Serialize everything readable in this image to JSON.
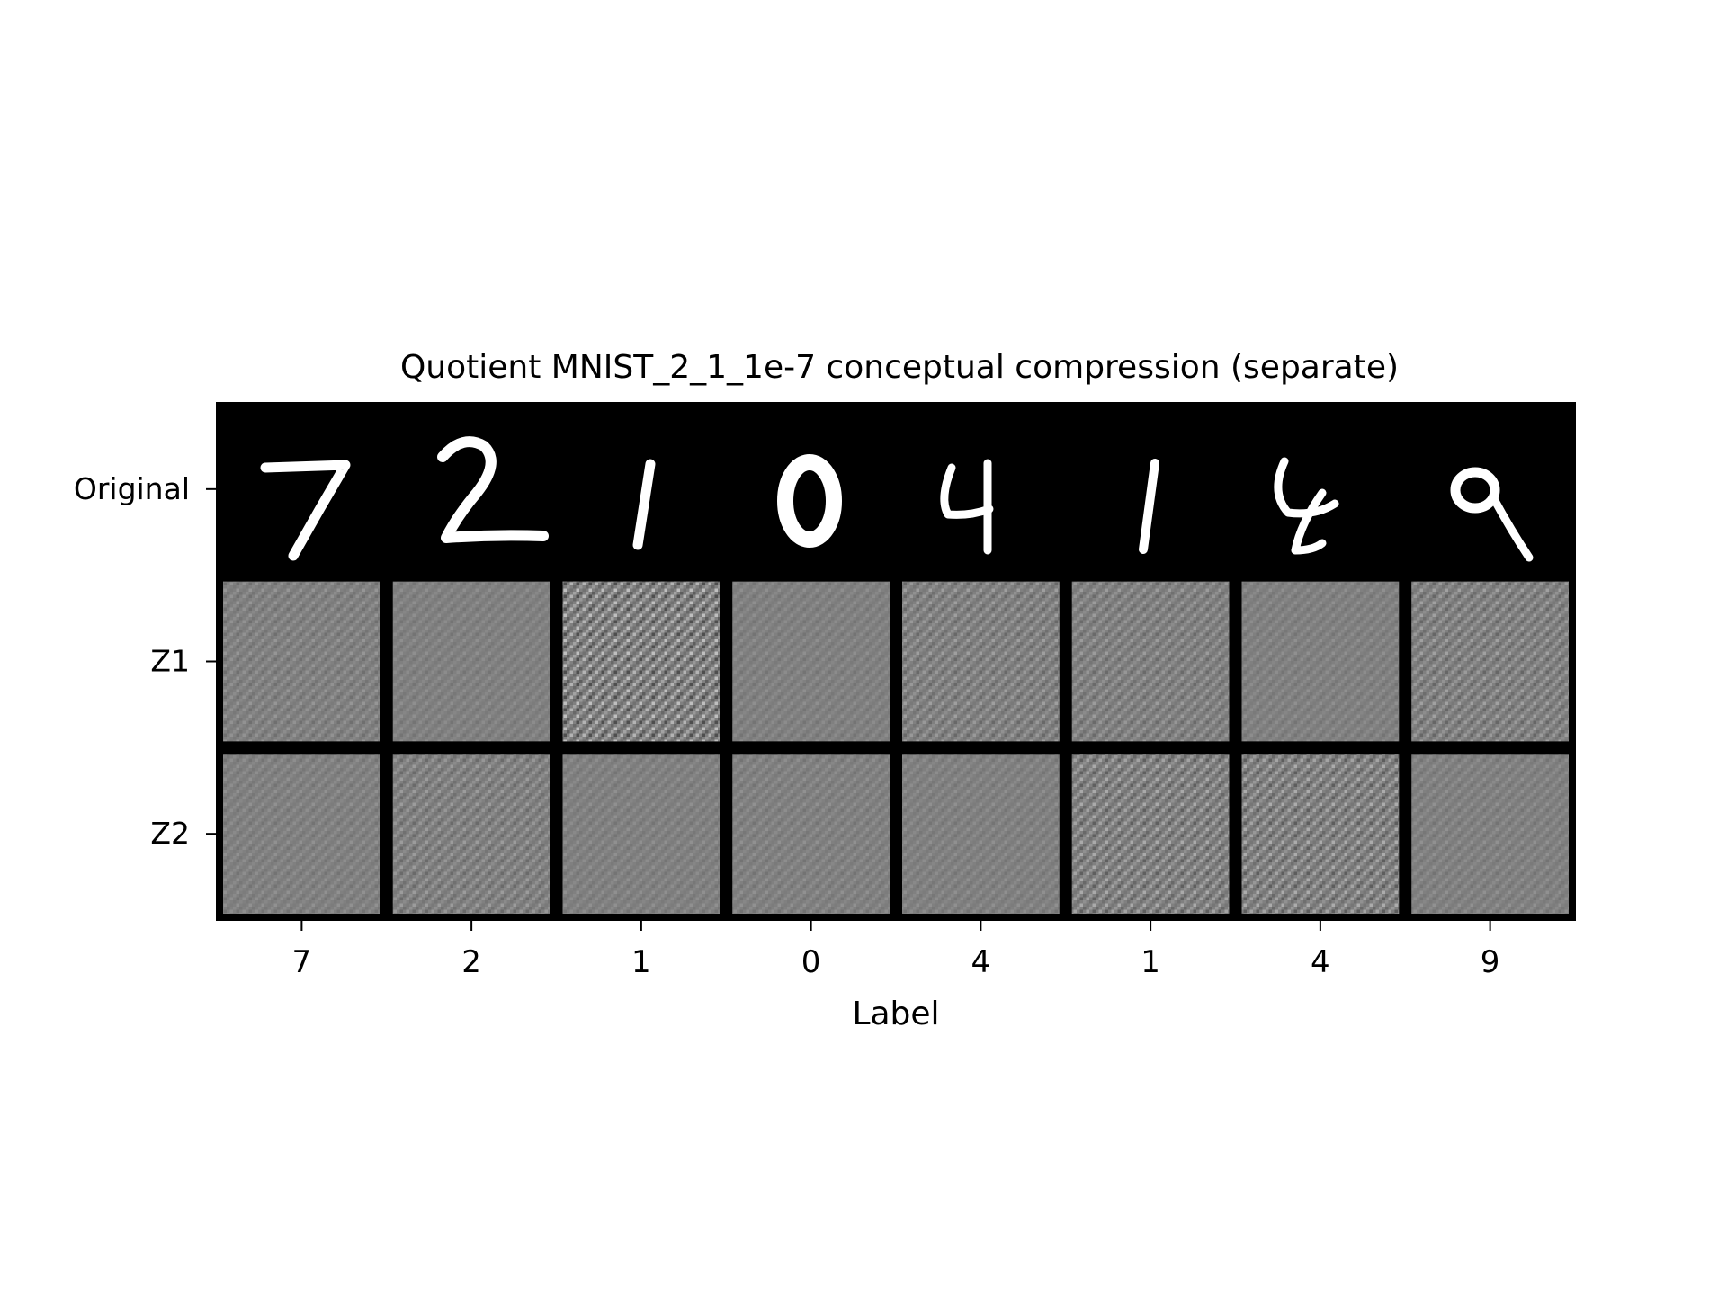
{
  "chart_data": {
    "type": "heatmap",
    "title": "Quotient MNIST_2_1_1e-7 conceptual compression (separate)",
    "xlabel": "Label",
    "ylabel": "",
    "categories": [
      "7",
      "2",
      "1",
      "0",
      "4",
      "1",
      "4",
      "9"
    ],
    "rows": [
      "Original",
      "Z1",
      "Z2"
    ],
    "cells": [
      [
        "digit 7",
        "digit 2",
        "digit 1",
        "digit 0",
        "digit 4",
        "digit 1",
        "digit 4",
        "digit 9"
      ],
      [
        "noise",
        "noise",
        "noise",
        "noise",
        "noise",
        "noise",
        "noise",
        "noise"
      ],
      [
        "noise",
        "noise",
        "noise",
        "noise",
        "noise",
        "noise",
        "noise",
        "noise"
      ]
    ],
    "noise_contrast": [
      [
        0,
        0,
        0,
        0,
        0,
        0,
        0,
        0
      ],
      [
        0.2,
        0.08,
        0.9,
        0.08,
        0.35,
        0.3,
        0.1,
        0.4
      ],
      [
        0.12,
        0.3,
        0.1,
        0.12,
        0.1,
        0.55,
        0.58,
        0.12
      ]
    ],
    "colormap": "gray",
    "colors": {
      "background": "#000000",
      "noise_mean": "#808080",
      "digit_stroke": "#ffffff"
    },
    "grid": false,
    "legend": "none"
  }
}
